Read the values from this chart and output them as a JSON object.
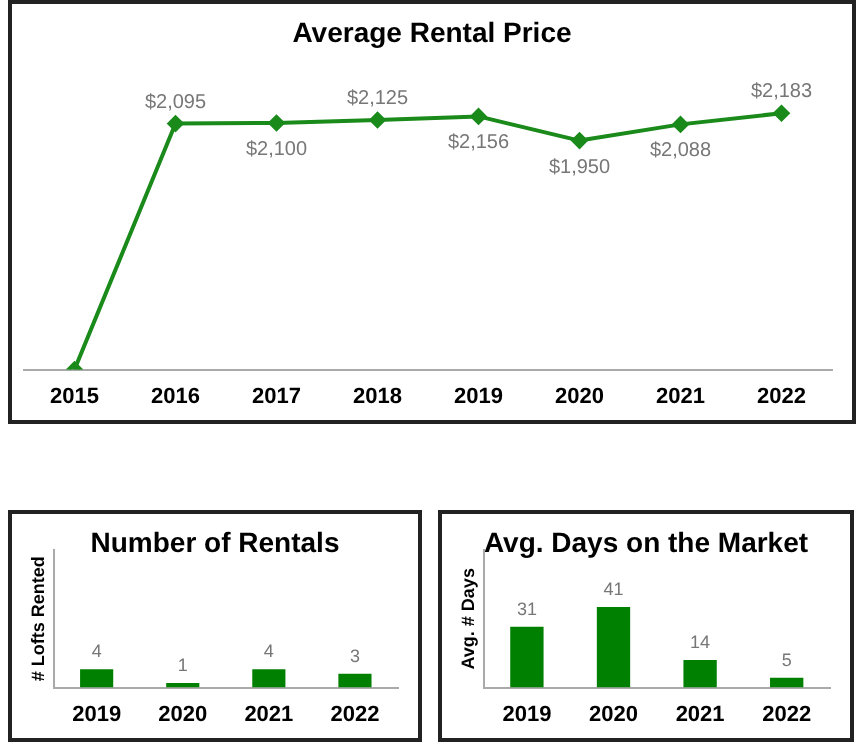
{
  "chart_data": [
    {
      "type": "line",
      "title": "Average Rental Price",
      "categories": [
        "2015",
        "2016",
        "2017",
        "2018",
        "2019",
        "2020",
        "2021",
        "2022"
      ],
      "series": [
        {
          "color": "#1a8a1a",
          "values": [
            0,
            2095,
            2100,
            2125,
            2156,
            1950,
            2088,
            2183
          ],
          "value_labels": [
            null,
            "$2,095",
            "$2,100",
            "$2,125",
            "$2,156",
            "$1,950",
            "$2,088",
            "$2,183"
          ]
        }
      ],
      "marker": "diamond",
      "grid": false,
      "legend": false
    },
    {
      "type": "bar",
      "title": "Number of Rentals",
      "ylabel": "# Lofts Rented",
      "categories": [
        "2019",
        "2020",
        "2021",
        "2022"
      ],
      "values": [
        4,
        1,
        4,
        3
      ],
      "color": "#008000",
      "ylim": [
        0,
        30
      ],
      "data_labels": true,
      "grid": false,
      "legend": false
    },
    {
      "type": "bar",
      "title": "Avg. Days on the Market",
      "ylabel": "Avg. # Days",
      "categories": [
        "2019",
        "2020",
        "2021",
        "2022"
      ],
      "values": [
        31,
        41,
        14,
        5
      ],
      "color": "#008000",
      "ylim": [
        0,
        70
      ],
      "data_labels": true,
      "grid": false,
      "legend": false
    }
  ]
}
